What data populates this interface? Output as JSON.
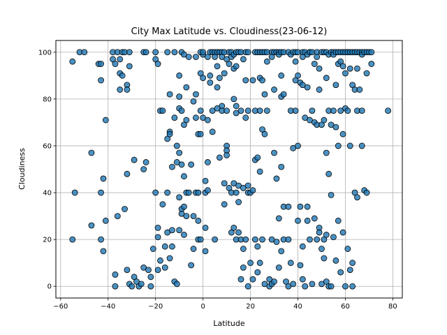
{
  "chart_data": {
    "type": "scatter",
    "title": "City Max Latitude vs. Cloudiness(23-06-12)",
    "xlabel": "Latitude",
    "ylabel": "Cloudiness",
    "xlim": [
      -62,
      84
    ],
    "ylim": [
      -5,
      105
    ],
    "xticks": [
      -60,
      -40,
      -20,
      0,
      20,
      40,
      60,
      80
    ],
    "yticks": [
      0,
      20,
      40,
      60,
      80,
      100
    ],
    "grid": true,
    "marker_color": "#1f77b4",
    "points": [
      [
        -55,
        96
      ],
      [
        -55,
        20
      ],
      [
        -54,
        40
      ],
      [
        -52,
        100
      ],
      [
        -50,
        100
      ],
      [
        -47,
        57
      ],
      [
        -47,
        26
      ],
      [
        -44,
        95
      ],
      [
        -43,
        88
      ],
      [
        -43,
        95
      ],
      [
        -43,
        40
      ],
      [
        -43,
        20
      ],
      [
        -42,
        46
      ],
      [
        -42,
        15
      ],
      [
        -41,
        71
      ],
      [
        -41,
        28
      ],
      [
        -38,
        100
      ],
      [
        -38,
        97
      ],
      [
        -37,
        95
      ],
      [
        -37,
        5
      ],
      [
        -37,
        0
      ],
      [
        -36,
        100
      ],
      [
        -36,
        30
      ],
      [
        -35,
        97
      ],
      [
        -35,
        91
      ],
      [
        -35,
        84
      ],
      [
        -34,
        100
      ],
      [
        -34,
        90
      ],
      [
        -33,
        100
      ],
      [
        -33,
        33
      ],
      [
        -32,
        86
      ],
      [
        -32,
        84
      ],
      [
        -32,
        48
      ],
      [
        -32,
        7
      ],
      [
        -31,
        100
      ],
      [
        -31,
        94
      ],
      [
        -31,
        1
      ],
      [
        -30,
        0
      ],
      [
        -29,
        4
      ],
      [
        -29,
        54
      ],
      [
        -28,
        2
      ],
      [
        -27,
        0
      ],
      [
        -26,
        1
      ],
      [
        -25,
        100
      ],
      [
        -25,
        50
      ],
      [
        -25,
        8
      ],
      [
        -24,
        53
      ],
      [
        -24,
        100
      ],
      [
        -23,
        7
      ],
      [
        -22,
        4
      ],
      [
        -22,
        0
      ],
      [
        -21,
        16
      ],
      [
        -20,
        100
      ],
      [
        -20,
        40
      ],
      [
        -20,
        97
      ],
      [
        -19,
        25
      ],
      [
        -19,
        95
      ],
      [
        -19,
        7
      ],
      [
        -19,
        21
      ],
      [
        -18,
        11
      ],
      [
        -18,
        75
      ],
      [
        -17,
        75
      ],
      [
        -17,
        35
      ],
      [
        -16,
        8
      ],
      [
        -16,
        17
      ],
      [
        -15,
        100
      ],
      [
        -15,
        63
      ],
      [
        -15,
        40
      ],
      [
        -15,
        23
      ],
      [
        -14,
        82
      ],
      [
        -14,
        66
      ],
      [
        -14,
        65
      ],
      [
        -14,
        12
      ],
      [
        -13,
        51
      ],
      [
        -13,
        17
      ],
      [
        -13,
        24
      ],
      [
        -12,
        2
      ],
      [
        -12,
        100
      ],
      [
        -12,
        72
      ],
      [
        -11,
        60
      ],
      [
        -11,
        53
      ],
      [
        -11,
        1
      ],
      [
        -10,
        90
      ],
      [
        -10,
        81
      ],
      [
        -10,
        76
      ],
      [
        -10,
        57
      ],
      [
        -10,
        38
      ],
      [
        -10,
        24
      ],
      [
        -9,
        100
      ],
      [
        -9,
        75
      ],
      [
        -9,
        52
      ],
      [
        -9,
        33
      ],
      [
        -9,
        31
      ],
      [
        -8,
        99
      ],
      [
        -8,
        69
      ],
      [
        -8,
        47
      ],
      [
        -8,
        34
      ],
      [
        -8,
        22
      ],
      [
        -7,
        85
      ],
      [
        -7,
        71
      ],
      [
        -7,
        40
      ],
      [
        -7,
        30
      ],
      [
        -6,
        98
      ],
      [
        -6,
        40
      ],
      [
        -5,
        52
      ],
      [
        -5,
        9
      ],
      [
        -4,
        79
      ],
      [
        -4,
        30
      ],
      [
        -4,
        16
      ],
      [
        -3,
        98
      ],
      [
        -3,
        72
      ],
      [
        -3,
        82
      ],
      [
        -3,
        40
      ],
      [
        -2,
        65
      ],
      [
        -2,
        40
      ],
      [
        -2,
        28
      ],
      [
        -2,
        20
      ],
      [
        -1,
        100
      ],
      [
        -1,
        91
      ],
      [
        -1,
        75
      ],
      [
        -1,
        65
      ],
      [
        -1,
        20
      ],
      [
        0,
        99
      ],
      [
        0,
        100
      ],
      [
        0,
        89
      ],
      [
        0,
        72
      ],
      [
        1,
        45
      ],
      [
        1,
        40
      ],
      [
        1,
        25
      ],
      [
        1,
        15
      ],
      [
        2,
        98
      ],
      [
        2,
        71
      ],
      [
        2,
        53
      ],
      [
        2,
        41
      ],
      [
        3,
        100
      ],
      [
        3,
        90
      ],
      [
        3,
        87
      ],
      [
        4,
        100
      ],
      [
        4,
        75
      ],
      [
        4,
        66
      ],
      [
        5,
        100
      ],
      [
        5,
        98
      ],
      [
        5,
        20
      ],
      [
        6,
        100
      ],
      [
        6,
        94
      ],
      [
        6,
        76
      ],
      [
        6,
        85
      ],
      [
        7,
        100
      ],
      [
        7,
        89
      ],
      [
        7,
        55
      ],
      [
        8,
        100
      ],
      [
        8,
        98
      ],
      [
        8,
        77
      ],
      [
        8,
        75
      ],
      [
        9,
        100
      ],
      [
        9,
        91
      ],
      [
        9,
        35
      ],
      [
        9,
        44
      ],
      [
        10,
        97
      ],
      [
        10,
        60
      ],
      [
        10,
        58
      ],
      [
        10,
        56
      ],
      [
        10,
        75
      ],
      [
        11,
        100
      ],
      [
        11,
        95
      ],
      [
        11,
        42
      ],
      [
        12,
        100
      ],
      [
        12,
        98
      ],
      [
        12,
        40
      ],
      [
        12,
        23
      ],
      [
        13,
        99
      ],
      [
        13,
        93
      ],
      [
        13,
        80
      ],
      [
        13,
        44
      ],
      [
        13,
        25
      ],
      [
        14,
        100
      ],
      [
        14,
        94
      ],
      [
        14,
        77
      ],
      [
        14,
        74
      ],
      [
        14,
        40
      ],
      [
        14,
        20
      ],
      [
        15,
        100
      ],
      [
        15,
        43
      ],
      [
        15,
        36
      ],
      [
        15,
        23
      ],
      [
        16,
        100
      ],
      [
        16,
        75
      ],
      [
        16,
        20
      ],
      [
        16,
        3
      ],
      [
        17,
        97
      ],
      [
        17,
        42
      ],
      [
        17,
        16
      ],
      [
        17,
        8
      ],
      [
        18,
        100
      ],
      [
        18,
        72
      ],
      [
        18,
        88
      ],
      [
        18,
        20
      ],
      [
        19,
        100
      ],
      [
        19,
        75
      ],
      [
        19,
        43
      ],
      [
        19,
        40
      ],
      [
        19,
        0
      ],
      [
        20,
        10
      ],
      [
        20,
        40
      ],
      [
        21,
        88
      ],
      [
        21,
        41
      ],
      [
        21,
        3
      ],
      [
        22,
        100
      ],
      [
        22,
        75
      ],
      [
        22,
        54
      ],
      [
        22,
        20
      ],
      [
        23,
        100
      ],
      [
        23,
        55
      ],
      [
        23,
        17
      ],
      [
        23,
        6
      ],
      [
        24,
        100
      ],
      [
        24,
        89
      ],
      [
        24,
        49
      ],
      [
        24,
        75
      ],
      [
        24,
        10
      ],
      [
        25,
        100
      ],
      [
        25,
        88
      ],
      [
        25,
        67
      ],
      [
        25,
        20
      ],
      [
        26,
        100
      ],
      [
        26,
        82
      ],
      [
        26,
        65
      ],
      [
        26,
        1
      ],
      [
        27,
        100
      ],
      [
        27,
        96
      ],
      [
        27,
        75
      ],
      [
        28,
        3
      ],
      [
        28,
        0
      ],
      [
        29,
        100
      ],
      [
        29,
        98
      ],
      [
        29,
        20
      ],
      [
        29,
        1
      ],
      [
        30,
        100
      ],
      [
        30,
        84
      ],
      [
        30,
        57
      ],
      [
        30,
        2
      ],
      [
        31,
        100
      ],
      [
        31,
        46
      ],
      [
        31,
        19
      ],
      [
        32,
        100
      ],
      [
        32,
        99
      ],
      [
        32,
        29
      ],
      [
        32,
        8
      ],
      [
        33,
        100
      ],
      [
        33,
        90
      ],
      [
        33,
        81
      ],
      [
        33,
        51
      ],
      [
        33,
        15
      ],
      [
        34,
        100
      ],
      [
        34,
        82
      ],
      [
        34,
        34
      ],
      [
        34,
        20
      ],
      [
        35,
        2
      ],
      [
        36,
        100
      ],
      [
        36,
        34
      ],
      [
        36,
        20
      ],
      [
        36,
        0
      ],
      [
        37,
        99
      ],
      [
        37,
        75
      ],
      [
        37,
        10
      ],
      [
        38,
        100
      ],
      [
        38,
        59
      ],
      [
        38,
        1
      ],
      [
        39,
        100
      ],
      [
        39,
        96
      ],
      [
        39,
        88
      ],
      [
        39,
        75
      ],
      [
        40,
        100
      ],
      [
        40,
        90
      ],
      [
        40,
        60
      ],
      [
        40,
        28
      ],
      [
        41,
        87
      ],
      [
        41,
        34
      ],
      [
        41,
        9
      ],
      [
        42,
        100
      ],
      [
        42,
        98
      ],
      [
        42,
        86
      ],
      [
        42,
        17
      ],
      [
        42,
        3
      ],
      [
        43,
        100
      ],
      [
        43,
        72
      ],
      [
        43,
        0
      ],
      [
        44,
        99
      ],
      [
        44,
        85
      ],
      [
        44,
        34
      ],
      [
        44,
        28
      ],
      [
        45,
        100
      ],
      [
        45,
        100
      ],
      [
        45,
        71
      ],
      [
        45,
        20
      ],
      [
        46,
        100
      ],
      [
        46,
        75
      ],
      [
        46,
        1
      ],
      [
        47,
        95
      ],
      [
        47,
        70
      ],
      [
        47,
        29
      ],
      [
        48,
        100
      ],
      [
        48,
        98
      ],
      [
        48,
        69
      ],
      [
        48,
        20
      ],
      [
        49,
        93
      ],
      [
        49,
        84
      ],
      [
        49,
        25
      ],
      [
        49,
        23
      ],
      [
        50,
        100
      ],
      [
        50,
        69
      ],
      [
        50,
        16
      ],
      [
        50,
        1
      ],
      [
        51,
        100
      ],
      [
        51,
        71
      ],
      [
        51,
        20
      ],
      [
        51,
        12
      ],
      [
        52,
        100
      ],
      [
        52,
        89
      ],
      [
        52,
        57
      ],
      [
        52,
        22
      ],
      [
        52,
        2
      ],
      [
        53,
        99
      ],
      [
        53,
        75
      ],
      [
        53,
        48
      ],
      [
        53,
        0
      ],
      [
        54,
        100
      ],
      [
        54,
        69
      ],
      [
        54,
        39
      ],
      [
        54,
        0
      ],
      [
        55,
        100
      ],
      [
        55,
        99
      ],
      [
        55,
        75
      ],
      [
        55,
        21
      ],
      [
        56,
        100
      ],
      [
        56,
        86
      ],
      [
        56,
        68
      ],
      [
        56,
        11
      ],
      [
        57,
        100
      ],
      [
        57,
        95
      ],
      [
        57,
        60
      ],
      [
        57,
        28
      ],
      [
        58,
        100
      ],
      [
        58,
        96
      ],
      [
        58,
        75
      ],
      [
        58,
        6
      ],
      [
        59,
        100
      ],
      [
        59,
        94
      ],
      [
        59,
        65
      ],
      [
        59,
        23
      ],
      [
        60,
        100
      ],
      [
        60,
        91
      ],
      [
        60,
        76
      ],
      [
        60,
        0
      ],
      [
        61,
        100
      ],
      [
        61,
        100
      ],
      [
        61,
        75
      ],
      [
        61,
        16
      ],
      [
        62,
        100
      ],
      [
        62,
        93
      ],
      [
        62,
        60
      ],
      [
        62,
        7
      ],
      [
        63,
        100
      ],
      [
        63,
        86
      ],
      [
        63,
        10
      ],
      [
        63,
        0
      ],
      [
        64,
        100
      ],
      [
        64,
        84
      ],
      [
        64,
        40
      ],
      [
        65,
        100
      ],
      [
        65,
        93
      ],
      [
        65,
        75
      ],
      [
        65,
        38
      ],
      [
        66,
        100
      ],
      [
        66,
        84
      ],
      [
        67,
        100
      ],
      [
        67,
        99
      ],
      [
        67,
        75
      ],
      [
        67,
        60
      ],
      [
        68,
        100
      ],
      [
        68,
        41
      ],
      [
        69,
        100
      ],
      [
        69,
        91
      ],
      [
        69,
        40
      ],
      [
        70,
        100
      ],
      [
        71,
        100
      ],
      [
        71,
        95
      ],
      [
        78,
        75
      ]
    ]
  }
}
